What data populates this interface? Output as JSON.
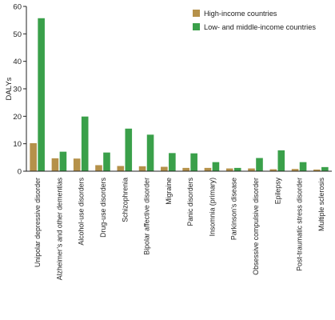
{
  "chart_data": {
    "type": "bar",
    "xlabel": "",
    "ylabel": "DALYs",
    "ylim": [
      0,
      60
    ],
    "yticks": [
      0,
      10,
      20,
      30,
      40,
      50,
      60
    ],
    "grid": false,
    "legend_position": "top-right",
    "categories": [
      "Unipolar depressive disorder",
      "Alzheimer’s and other dementias",
      "Alcohol-use disorders",
      "Drug-use disorders",
      "Schizophrenia",
      "Bipolar affective disorder",
      "Migraine",
      "Panic disorders",
      "Insomnia (primary)",
      "Parkinson’s disease",
      "Obsessive compulsive disorder",
      "Epilepsy",
      "Post-traumatic stress disorder",
      "Multiple sclerosis"
    ],
    "series": [
      {
        "name": "High-income countries",
        "color": "#B5914A",
        "values": [
          10.2,
          4.7,
          4.6,
          2.2,
          1.9,
          1.8,
          1.6,
          1.2,
          1.2,
          1.0,
          1.0,
          0.7,
          0.8,
          0.6
        ]
      },
      {
        "name": "Low- and middle-income countries",
        "color": "#3AA04A",
        "values": [
          55.7,
          7.1,
          19.9,
          6.8,
          15.5,
          13.3,
          6.6,
          6.5,
          3.3,
          1.2,
          4.8,
          7.6,
          3.3,
          1.5
        ]
      }
    ]
  }
}
